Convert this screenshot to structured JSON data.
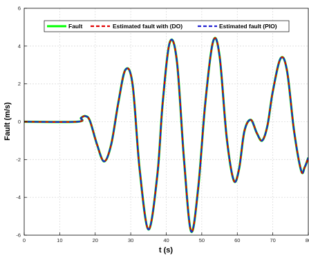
{
  "chart_data": {
    "type": "line",
    "title": "",
    "xlabel": "t (s)",
    "ylabel": "Fault (m/s)",
    "xlim": [
      0,
      80
    ],
    "ylim": [
      -6,
      6
    ],
    "xticks": [
      0,
      10,
      20,
      30,
      40,
      50,
      60,
      70,
      80
    ],
    "yticks": [
      -6,
      -4,
      -2,
      0,
      2,
      4,
      6
    ],
    "xtick_labels": [
      "0",
      "10",
      "20",
      "30",
      "40",
      "50",
      "60",
      "70",
      "80"
    ],
    "ytick_labels": [
      "-6",
      "-4",
      "-2",
      "0",
      "2",
      "4",
      "6"
    ],
    "grid": true,
    "legend_position": "top",
    "series": [
      {
        "name": "Fault",
        "color": "#00ff00",
        "style": "solid",
        "x": [
          0,
          15,
          16,
          17.2,
          18.5,
          20.5,
          22.5,
          24.5,
          26.5,
          28.5,
          30.5,
          32.5,
          35,
          37.5,
          39,
          41,
          43,
          45,
          47,
          49,
          51,
          53.2,
          55,
          57,
          59,
          60.5,
          62,
          63.8,
          65.5,
          67,
          68.5,
          70,
          72.2,
          74,
          76,
          78,
          79,
          80
        ],
        "y": [
          0,
          0,
          0.2,
          0.3,
          0.05,
          -1.2,
          -2.1,
          -1.2,
          1.0,
          2.75,
          2.0,
          -2.5,
          -5.7,
          -2.8,
          1.0,
          4.2,
          3.2,
          -2.0,
          -5.8,
          -3.5,
          1.0,
          4.25,
          3.5,
          -0.8,
          -3.1,
          -2.5,
          -0.5,
          0.1,
          -0.6,
          -1.0,
          -0.2,
          1.6,
          3.35,
          2.7,
          -0.5,
          -2.6,
          -2.4,
          -1.9
        ]
      },
      {
        "name": "Estimated fault with (DO)",
        "color": "#e00000",
        "style": "dashed",
        "x": [
          0,
          15,
          16,
          17.2,
          18.5,
          20.5,
          22.5,
          24.5,
          26.5,
          28.5,
          30.5,
          32.5,
          35,
          37.5,
          39,
          41,
          43,
          45,
          47,
          49,
          51,
          53.2,
          55,
          57,
          59,
          60.5,
          62,
          63.8,
          65.5,
          67,
          68.5,
          70,
          72.2,
          74,
          76,
          78,
          79,
          80
        ],
        "y": [
          0,
          0,
          0.2,
          0.3,
          0.05,
          -1.2,
          -2.1,
          -1.2,
          1.0,
          2.75,
          2.0,
          -2.5,
          -5.7,
          -2.8,
          1.0,
          4.2,
          3.2,
          -2.0,
          -5.8,
          -3.5,
          1.0,
          4.25,
          3.5,
          -0.8,
          -3.1,
          -2.5,
          -0.5,
          0.1,
          -0.6,
          -1.0,
          -0.2,
          1.6,
          3.35,
          2.7,
          -0.5,
          -2.6,
          -2.4,
          -1.9
        ]
      },
      {
        "name": "Estimated fault (PIO)",
        "color": "#1f1fd0",
        "style": "dashed",
        "x": [
          0,
          15,
          16,
          17.2,
          18.5,
          20.5,
          22.5,
          24.5,
          26.5,
          28.5,
          30.5,
          32.5,
          35,
          37.5,
          39,
          41,
          43,
          45,
          47,
          49,
          51,
          53.2,
          55,
          57,
          59,
          60.5,
          62,
          63.8,
          65.5,
          67,
          68.5,
          70,
          72.2,
          74,
          76,
          78,
          79,
          80
        ],
        "y": [
          0,
          0,
          0.2,
          0.3,
          0.05,
          -1.2,
          -2.1,
          -1.2,
          1.0,
          2.75,
          2.0,
          -2.5,
          -5.7,
          -2.8,
          1.0,
          4.2,
          3.2,
          -2.0,
          -5.8,
          -3.5,
          1.0,
          4.25,
          3.5,
          -0.8,
          -3.1,
          -2.5,
          -0.5,
          0.1,
          -0.6,
          -1.0,
          -0.2,
          1.6,
          3.35,
          2.7,
          -0.5,
          -2.6,
          -2.4,
          -1.9
        ]
      }
    ]
  }
}
